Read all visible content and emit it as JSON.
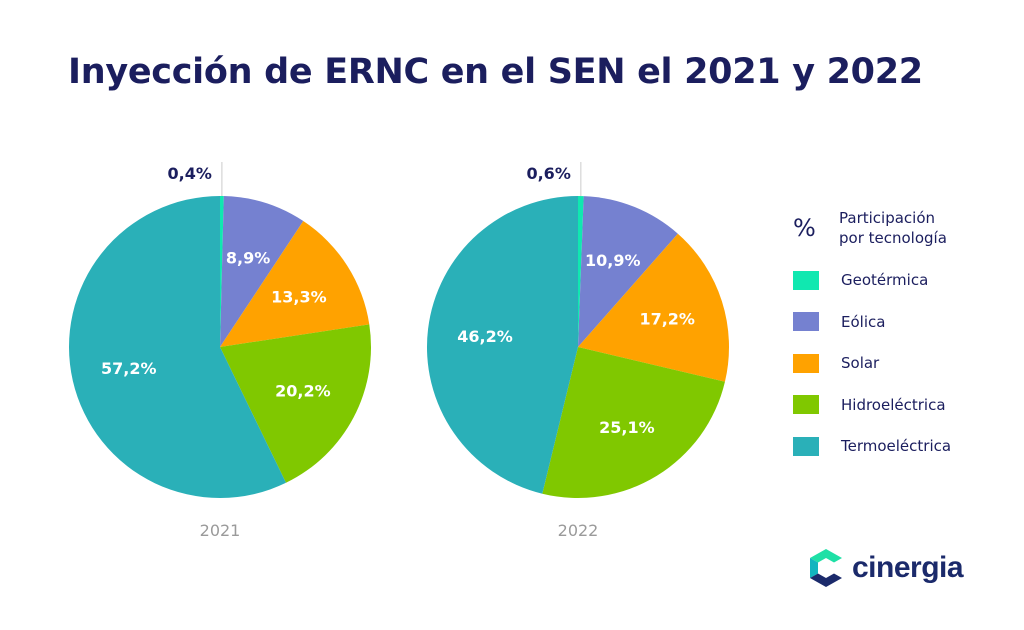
{
  "title": "Inyección de ERNC en el SEN el 2021 y 2022",
  "legend": {
    "symbol": "%",
    "title_line1": "Participación",
    "title_line2": "por tecnología",
    "items": [
      {
        "label": "Geotérmica",
        "color": "#10e8b0"
      },
      {
        "label": "Eólica",
        "color": "#7581d0"
      },
      {
        "label": "Solar",
        "color": "#ffa200"
      },
      {
        "label": "Hidroeléctrica",
        "color": "#80c800"
      },
      {
        "label": "Termoeléctrica",
        "color": "#2ab0b8"
      }
    ]
  },
  "logo": {
    "text": "cinergia"
  },
  "chart_data": [
    {
      "type": "pie",
      "year": "2021",
      "categories": [
        "Geotérmica",
        "Eólica",
        "Solar",
        "Hidroeléctrica",
        "Termoeléctrica"
      ],
      "values": [
        0.4,
        8.9,
        13.3,
        20.2,
        57.2
      ],
      "labels": [
        "0,4%",
        "8,9%",
        "13,3%",
        "20,2%",
        "57,2%"
      ]
    },
    {
      "type": "pie",
      "year": "2022",
      "categories": [
        "Geotérmica",
        "Eólica",
        "Solar",
        "Hidroeléctrica",
        "Termoeléctrica"
      ],
      "values": [
        0.6,
        10.9,
        17.2,
        25.1,
        46.2
      ],
      "labels": [
        "0,6%",
        "10,9%",
        "17,2%",
        "25,1%",
        "46,2%"
      ]
    }
  ]
}
